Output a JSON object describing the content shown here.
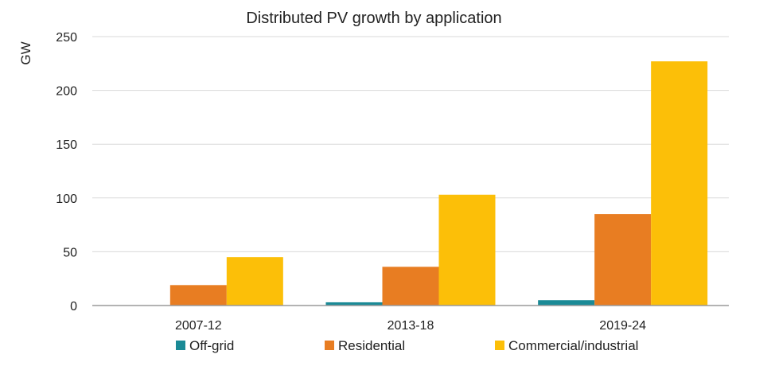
{
  "chart_data": {
    "type": "bar",
    "title": "Distributed PV growth by application",
    "ylabel": "GW",
    "xlabel": "",
    "ylim": [
      0,
      250
    ],
    "yticks": [
      0,
      50,
      100,
      150,
      200,
      250
    ],
    "categories": [
      "2007-12",
      "2013-18",
      "2019-24"
    ],
    "series": [
      {
        "name": "Off-grid",
        "color": "#1a8a96",
        "values": [
          0,
          3,
          5
        ]
      },
      {
        "name": "Residential",
        "color": "#e87d22",
        "values": [
          19,
          36,
          85
        ]
      },
      {
        "name": "Commercial/industrial",
        "color": "#fcbf08",
        "values": [
          45,
          103,
          227
        ]
      }
    ],
    "grid": true,
    "legend_position": "bottom"
  }
}
